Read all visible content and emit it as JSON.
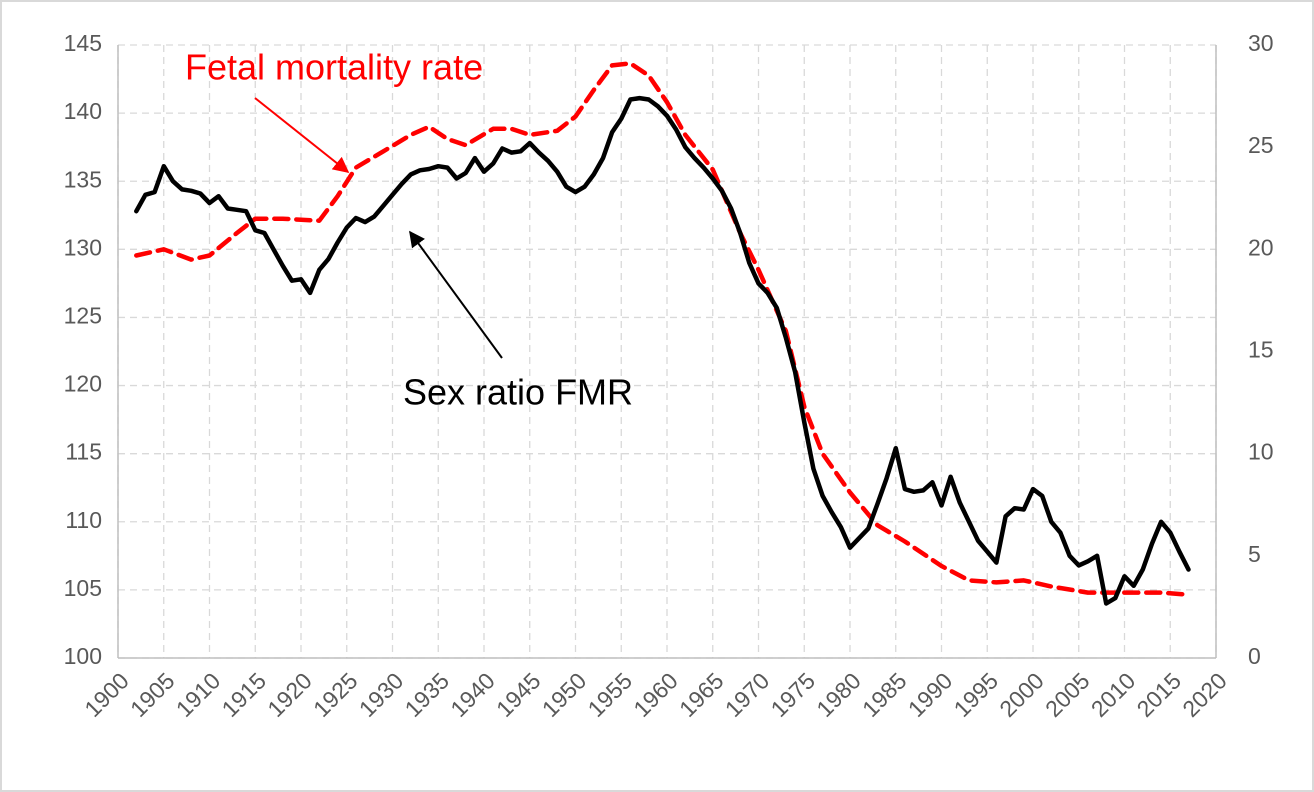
{
  "chart_data": {
    "type": "line",
    "annotations": [
      "Fetal mortality rate",
      "Sex ratio FMR"
    ],
    "xlim": [
      1900,
      2020
    ],
    "xticks": [
      1900,
      1905,
      1910,
      1915,
      1920,
      1925,
      1930,
      1935,
      1940,
      1945,
      1950,
      1955,
      1960,
      1965,
      1970,
      1975,
      1980,
      1985,
      1990,
      1995,
      2000,
      2005,
      2010,
      2015,
      2020
    ],
    "ylim": [
      100,
      145
    ],
    "yticks": [
      100,
      105,
      110,
      115,
      120,
      125,
      130,
      135,
      140,
      145
    ],
    "y2lim": [
      0,
      30
    ],
    "y2ticks": [
      0,
      5,
      10,
      15,
      20,
      25,
      30
    ],
    "grid": true,
    "series": [
      {
        "name": "Sex ratio FMR",
        "color": "#000000",
        "axis": "y",
        "x": [
          1902,
          1903,
          1904,
          1905,
          1906,
          1907,
          1908,
          1909,
          1910,
          1911,
          1912,
          1913,
          1914,
          1915,
          1916,
          1917,
          1918,
          1919,
          1920,
          1921,
          1922,
          1923,
          1924,
          1925,
          1926,
          1927,
          1928,
          1929,
          1930,
          1931,
          1932,
          1933,
          1934,
          1935,
          1936,
          1937,
          1938,
          1939,
          1940,
          1941,
          1942,
          1943,
          1944,
          1945,
          1946,
          1947,
          1948,
          1949,
          1950,
          1951,
          1952,
          1953,
          1954,
          1955,
          1956,
          1957,
          1958,
          1959,
          1960,
          1961,
          1962,
          1963,
          1964,
          1965,
          1966,
          1967,
          1968,
          1969,
          1970,
          1971,
          1972,
          1973,
          1974,
          1975,
          1976,
          1977,
          1978,
          1979,
          1980,
          1981,
          1982,
          1983,
          1984,
          1985,
          1986,
          1987,
          1988,
          1989,
          1990,
          1991,
          1992,
          1993,
          1994,
          1995,
          1996,
          1997,
          1998,
          1999,
          2000,
          2001,
          2002,
          2003,
          2004,
          2005,
          2006,
          2007,
          2008,
          2009,
          2010,
          2011,
          2012,
          2013,
          2014,
          2015,
          2016,
          2017
        ],
        "values": [
          132.8,
          134,
          134.2,
          136.1,
          135,
          134.4,
          134.3,
          134.1,
          133.4,
          133.9,
          133,
          132.9,
          132.8,
          131.4,
          131.2,
          130,
          128.8,
          127.7,
          127.8,
          126.8,
          128.5,
          129.3,
          130.5,
          131.6,
          132.3,
          132,
          132.4,
          133.2,
          134,
          134.8,
          135.5,
          135.8,
          135.9,
          136.1,
          136,
          135.2,
          135.6,
          136.7,
          135.7,
          136.3,
          137.4,
          137.1,
          137.2,
          137.8,
          137.1,
          136.5,
          135.7,
          134.6,
          134.2,
          134.6,
          135.5,
          136.7,
          138.6,
          139.6,
          141,
          141.1,
          141,
          140.5,
          139.8,
          138.8,
          137.5,
          136.7,
          136,
          135.2,
          134.3,
          133,
          131.2,
          129,
          127.5,
          126.8,
          125.7,
          123.5,
          121,
          117.3,
          113.9,
          111.9,
          110.7,
          109.6,
          108.1,
          108.8,
          109.5,
          111.3,
          113.2,
          115.4,
          112.4,
          112.2,
          112.3,
          112.9,
          111.2,
          113.3,
          111.4,
          110,
          108.6,
          107.8,
          107,
          110.4,
          111,
          110.9,
          112.4,
          111.9,
          110,
          109.2,
          107.5,
          106.8,
          107.1,
          107.5,
          104,
          104.4,
          106,
          105.3,
          106.5,
          108.4,
          110,
          109.2,
          107.8,
          106.5
        ]
      },
      {
        "name": "Fetal mortality rate",
        "color": "#ff0000",
        "axis": "y2",
        "x": [
          1902,
          1905,
          1908,
          1910,
          1913,
          1915,
          1918,
          1922,
          1924,
          1926,
          1929,
          1932,
          1934,
          1936,
          1938,
          1941,
          1943,
          1945,
          1948,
          1950,
          1952,
          1954,
          1956,
          1958,
          1960,
          1962,
          1965,
          1968,
          1970,
          1973,
          1975,
          1977,
          1980,
          1983,
          1986,
          1990,
          1993,
          1996,
          1999,
          2002,
          2006,
          2010,
          2014,
          2017
        ],
        "values": [
          19.7,
          20,
          19.5,
          19.7,
          20.8,
          21.5,
          21.5,
          21.4,
          22.6,
          24,
          24.8,
          25.6,
          26,
          25.4,
          25.1,
          25.9,
          25.9,
          25.6,
          25.8,
          26.5,
          27.8,
          29,
          29.1,
          28.5,
          27.2,
          25.6,
          23.9,
          20.8,
          19,
          16,
          12.3,
          10,
          8.1,
          6.5,
          5.7,
          4.5,
          3.8,
          3.7,
          3.8,
          3.5,
          3.2,
          3.2,
          3.2,
          3.1
        ]
      }
    ]
  }
}
